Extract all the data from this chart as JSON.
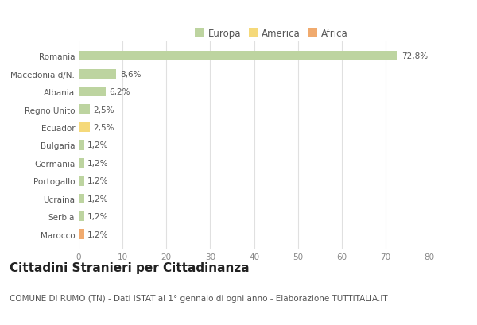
{
  "categories": [
    "Romania",
    "Macedonia d/N.",
    "Albania",
    "Regno Unito",
    "Ecuador",
    "Bulgaria",
    "Germania",
    "Portogallo",
    "Ucraina",
    "Serbia",
    "Marocco"
  ],
  "values": [
    72.8,
    8.6,
    6.2,
    2.5,
    2.5,
    1.2,
    1.2,
    1.2,
    1.2,
    1.2,
    1.2
  ],
  "labels": [
    "72,8%",
    "8,6%",
    "6,2%",
    "2,5%",
    "2,5%",
    "1,2%",
    "1,2%",
    "1,2%",
    "1,2%",
    "1,2%",
    "1,2%"
  ],
  "colors": [
    "#bdd4a0",
    "#bdd4a0",
    "#bdd4a0",
    "#bdd4a0",
    "#f5d97a",
    "#bdd4a0",
    "#bdd4a0",
    "#bdd4a0",
    "#bdd4a0",
    "#bdd4a0",
    "#f0aa6e"
  ],
  "legend_labels": [
    "Europa",
    "America",
    "Africa"
  ],
  "legend_colors": [
    "#bdd4a0",
    "#f5d97a",
    "#f0aa6e"
  ],
  "title": "Cittadini Stranieri per Cittadinanza",
  "subtitle": "COMUNE DI RUMO (TN) - Dati ISTAT al 1° gennaio di ogni anno - Elaborazione TUTTITALIA.IT",
  "xlim": [
    0,
    80
  ],
  "xticks": [
    0,
    10,
    20,
    30,
    40,
    50,
    60,
    70,
    80
  ],
  "background_color": "#ffffff",
  "grid_color": "#e0e0e0",
  "bar_height": 0.55,
  "title_fontsize": 11,
  "subtitle_fontsize": 7.5,
  "label_fontsize": 7.5,
  "tick_fontsize": 7.5,
  "legend_fontsize": 8.5
}
